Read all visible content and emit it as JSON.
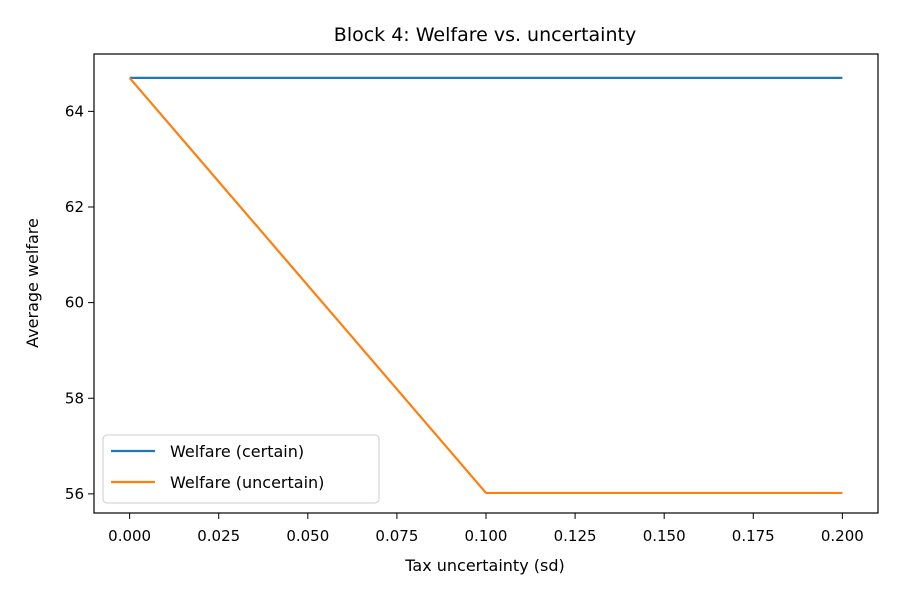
{
  "chart_data": {
    "type": "line",
    "title": "Block 4: Welfare vs. uncertainty",
    "xlabel": "Tax uncertainty (sd)",
    "ylabel": "Average welfare",
    "xlim": [
      -0.01,
      0.21
    ],
    "ylim": [
      55.6,
      65.2
    ],
    "x_ticks": [
      0.0,
      0.025,
      0.05,
      0.075,
      0.1,
      0.125,
      0.15,
      0.175,
      0.2
    ],
    "x_tick_labels": [
      "0.000",
      "0.025",
      "0.050",
      "0.075",
      "0.100",
      "0.125",
      "0.150",
      "0.175",
      "0.200"
    ],
    "y_ticks": [
      56,
      58,
      60,
      62,
      64
    ],
    "y_tick_labels": [
      "56",
      "58",
      "60",
      "62",
      "64"
    ],
    "grid": false,
    "legend_position": "lower-left",
    "series": [
      {
        "name": "Welfare (certain)",
        "color": "#1f77b4",
        "x": [
          0.0,
          0.2
        ],
        "y": [
          64.7,
          64.7
        ]
      },
      {
        "name": "Welfare (uncertain)",
        "color": "#ff7f0e",
        "x": [
          0.0,
          0.1,
          0.2
        ],
        "y": [
          64.7,
          56.02,
          56.02
        ]
      }
    ]
  }
}
